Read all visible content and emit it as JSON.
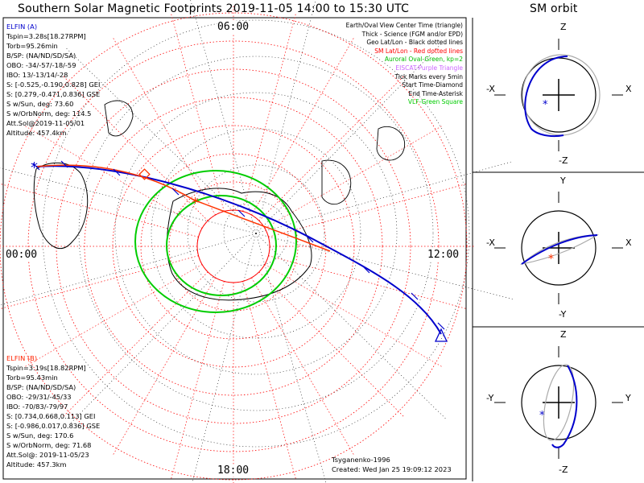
{
  "title": "Southern Solar Magnetic Footprints 2019-11-05 14:00 to 15:30 UTC",
  "orbit_title": "SM orbit",
  "time_labels": {
    "top": "06:00",
    "left": "00:00",
    "right": "12:00",
    "bottom": "18:00"
  },
  "legend": [
    {
      "text": "Earth/Oval View Center Time (triangle)",
      "color": "#000000"
    },
    {
      "text": "Thick - Science (FGM and/or EPD)",
      "color": "#000000"
    },
    {
      "text": "Geo Lat/Lon - Black dotted lines",
      "color": "#000000"
    },
    {
      "text": "SM Lat/Lon - Red dotted lines",
      "color": "#ff0000"
    },
    {
      "text": "Auroral Oval-Green, kp=2",
      "color": "#00bb00"
    },
    {
      "text": "EISCAT-Purple Triangle",
      "color": "#cc66ff"
    },
    {
      "text": "Tick Marks every 5min",
      "color": "#000000"
    },
    {
      "text": "Start Time-Diamond",
      "color": "#000000"
    },
    {
      "text": "End Time-Asterisk",
      "color": "#000000"
    },
    {
      "text": "VLF-Green Square",
      "color": "#00cc00"
    }
  ],
  "elfin_a": {
    "name": "ELFIN (A)",
    "lines": [
      "Tspin=3.28s[18.27RPM]",
      "Torb=95.26min",
      "B/SP: (NA/ND/SD/SA)",
      "OBO: -34/-57/-18/-59",
      "IBO: 13/-13/14/-28",
      "S: [-0.525,-0.190,0.828] GEI",
      "S: [0.279,-0.471,0.836] GSE",
      "S w/Sun, deg: 73.60",
      "S w/OrbNorm, deg: 114.5",
      "Att.Sol@2019-11-05/01",
      "Altitude: 457.4km"
    ]
  },
  "elfin_b": {
    "name": "ELFIN (B)",
    "lines": [
      "Tspin=3.19s[18.82RPM]",
      "Torb=95.43min",
      "B/SP: (NA/ND/SD/SA)",
      "OBO: -29/31/-45/33",
      "IBO: -70/83/-79/97",
      "S: [0.734,0.668,0.113] GEI",
      "S: [-0.986,0.017,0.836] GSE",
      "S w/Sun, deg: 170.6",
      "S w/OrbNorm, deg: 71.68",
      "Att.Sol@: 2019-11-05/23",
      "Altitude: 457.3km"
    ]
  },
  "credits": {
    "model": "Tsyganenko-1996",
    "created": "Created: Wed Jan 25 19:09:12 2023"
  },
  "panels": [
    {
      "top": "Z",
      "bottom": "-Z",
      "left": "-X",
      "right": "X"
    },
    {
      "top": "Y",
      "bottom": "-Y",
      "left": "-X",
      "right": "X"
    },
    {
      "top": "Z",
      "bottom": "-Z",
      "left": "-Y",
      "right": "Y"
    }
  ],
  "colors": {
    "elfin_a": "#0000cc",
    "elfin_b": "#ff3300",
    "oval": "#00cc00",
    "grid_sm": "#ff0000"
  }
}
